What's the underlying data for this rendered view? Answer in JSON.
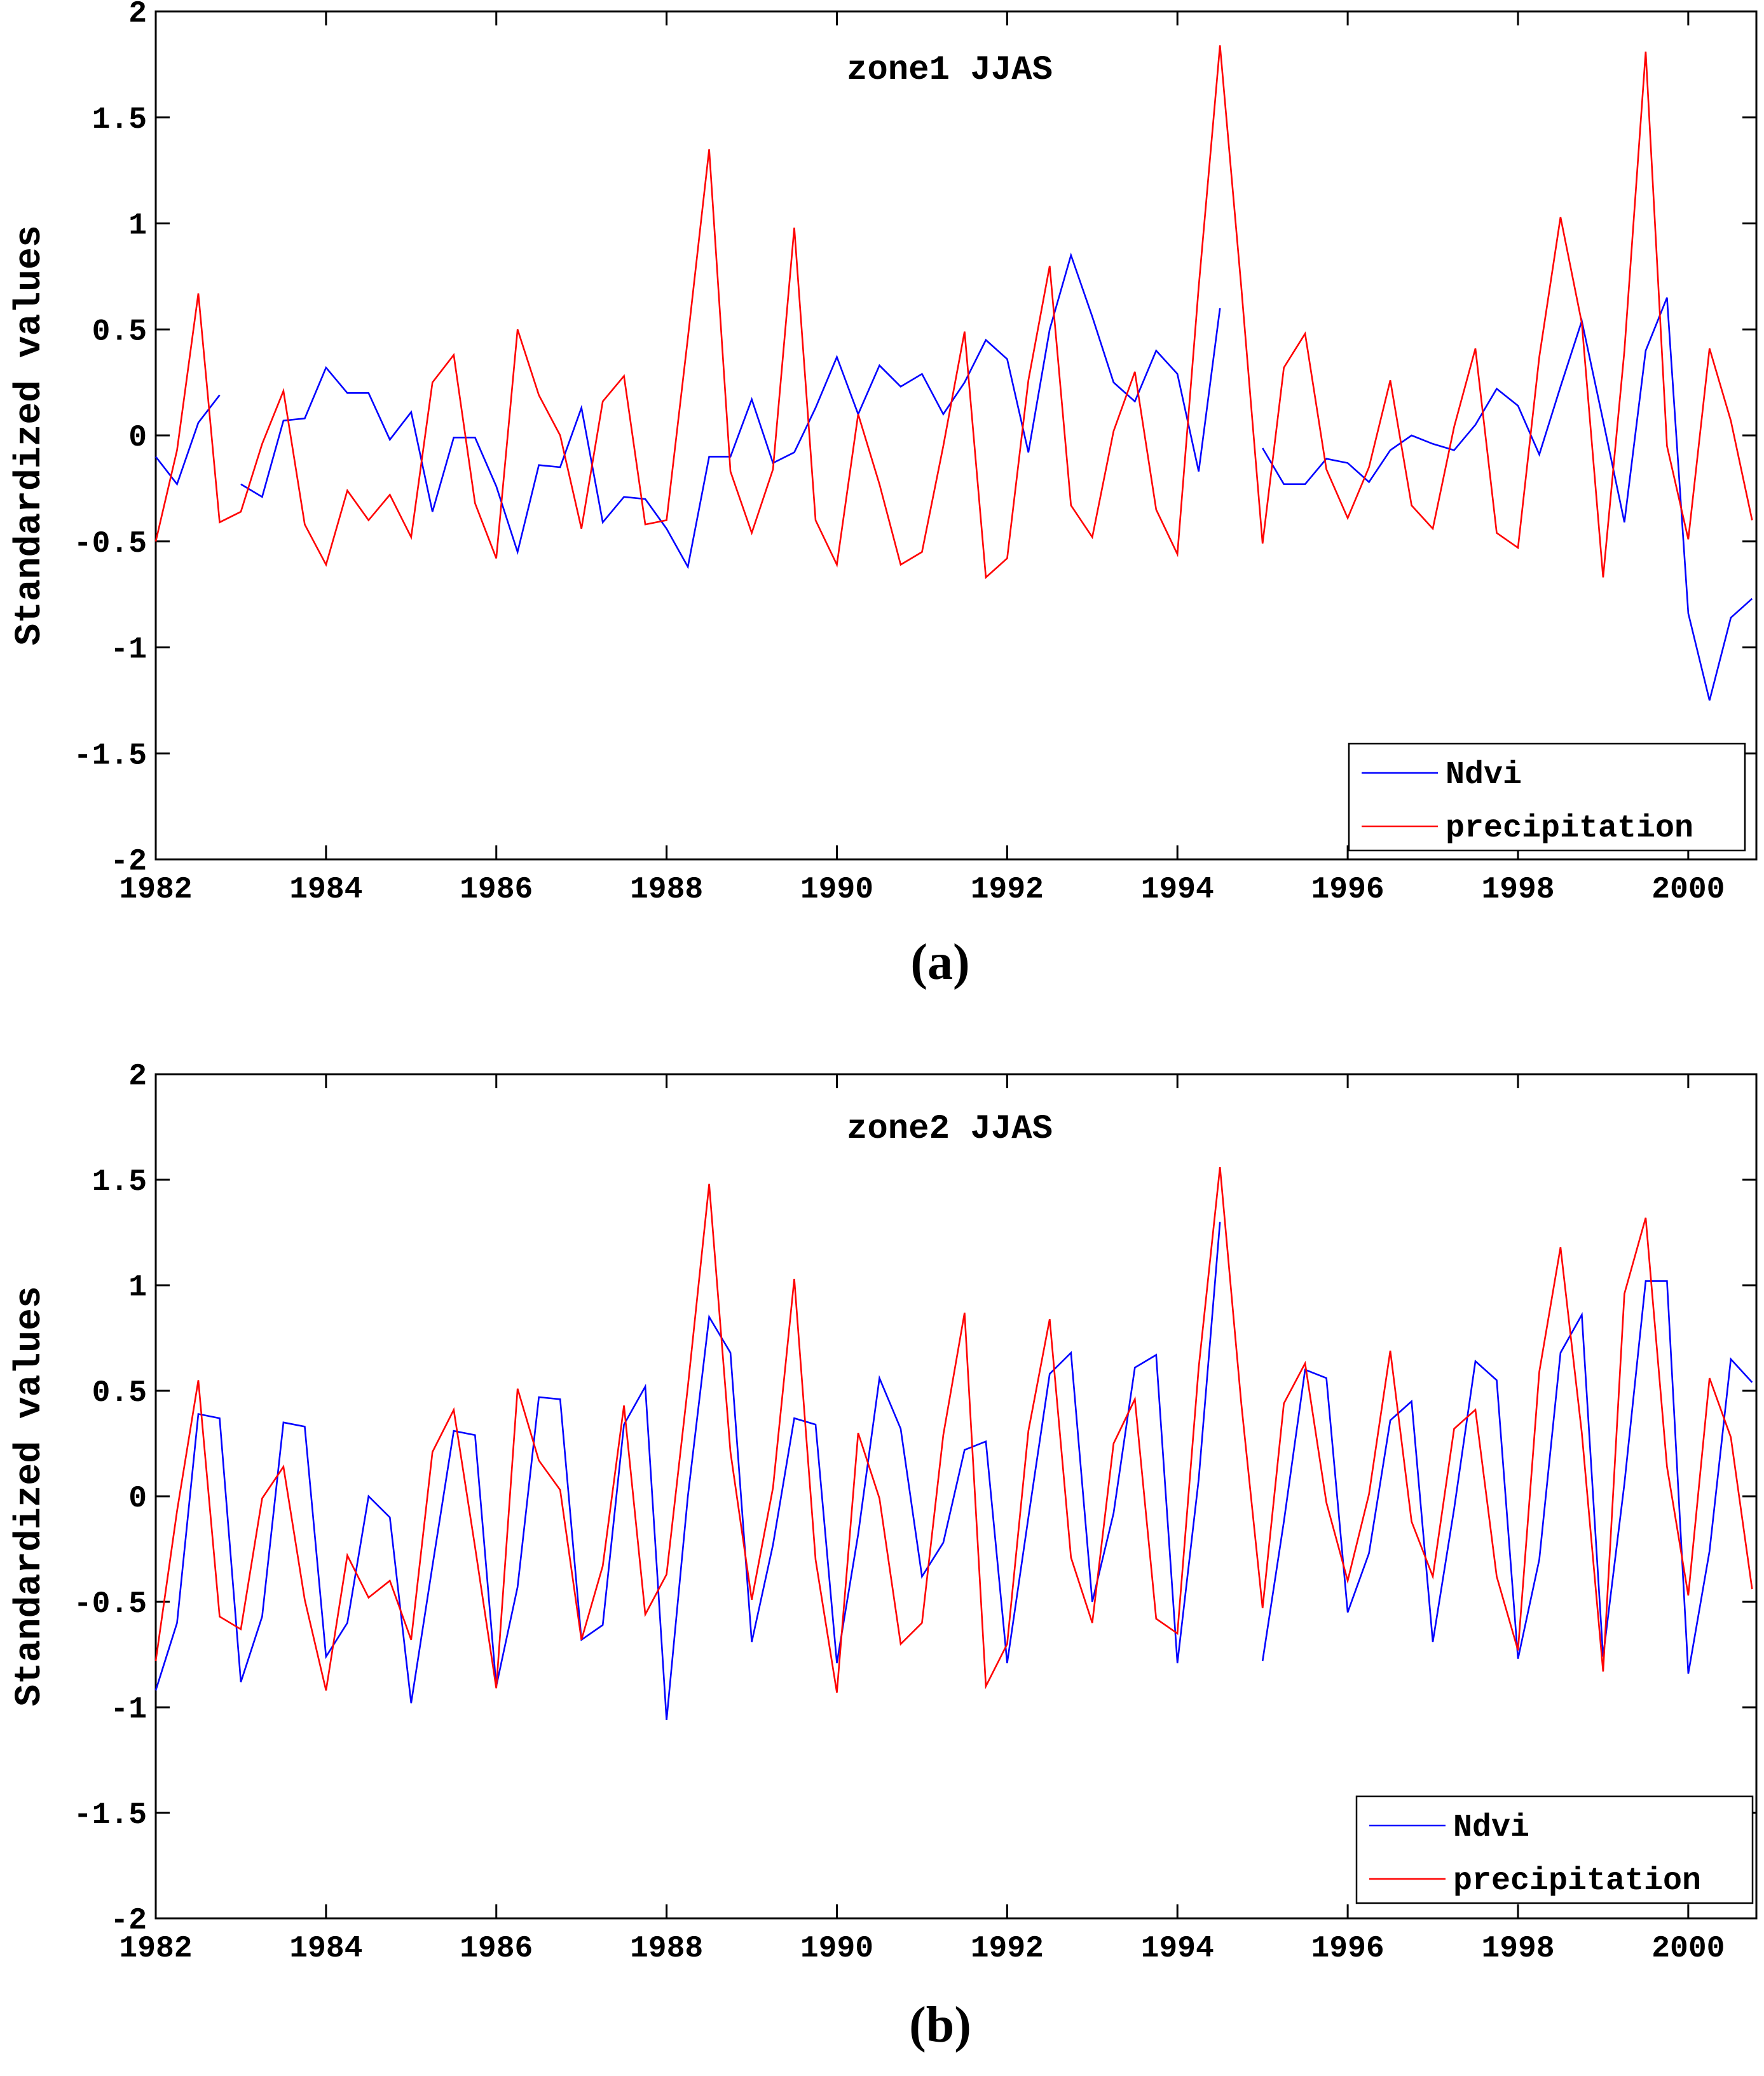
{
  "chart_data": [
    {
      "type": "line",
      "panel_label": "(a)",
      "title": "zone1 JJAS",
      "xlabel": "",
      "ylabel": "Standardized values",
      "xlim": [
        1982,
        2000.8
      ],
      "ylim": [
        -2,
        2
      ],
      "xticks": [
        1982,
        1984,
        1986,
        1988,
        1990,
        1992,
        1994,
        1996,
        1998,
        2000
      ],
      "yticks": [
        -2,
        -1.5,
        -1,
        -0.5,
        0,
        0.5,
        1,
        1.5,
        2
      ],
      "ytick_labels": [
        "-2",
        "-1.5",
        "-1",
        "-0.5",
        "0",
        "0.5",
        "1",
        "1.5",
        "2"
      ],
      "legend_position": "bottom-right",
      "series": [
        {
          "name": "Ndvi",
          "color": "#0000ff",
          "x": [
            1982,
            1982.25,
            1982.5,
            1982.75,
            null,
            1983,
            1983.25,
            1983.5,
            1983.75,
            1984,
            1984.25,
            1984.5,
            1984.75,
            1985,
            1985.25,
            1985.5,
            1985.75,
            1986,
            1986.25,
            1986.5,
            1986.75,
            1987,
            1987.25,
            1987.5,
            1987.75,
            1988,
            1988.25,
            1988.5,
            1988.75,
            1989,
            1989.25,
            1989.5,
            1989.75,
            1990,
            1990.25,
            1990.5,
            1990.75,
            1991,
            1991.25,
            1991.5,
            1991.75,
            1992,
            1992.25,
            1992.5,
            1992.75,
            1993,
            1993.25,
            1993.5,
            1993.75,
            1994,
            1994.25,
            1994.5,
            null,
            1995,
            1995.25,
            1995.5,
            1995.75,
            1996,
            1996.25,
            1996.5,
            1996.75,
            1997,
            1997.25,
            1997.5,
            1997.75,
            1998,
            1998.25,
            1998.5,
            1998.75,
            1999,
            1999.25,
            1999.5,
            1999.75,
            2000,
            2000.25,
            2000.5,
            2000.75
          ],
          "y": [
            -0.1,
            -0.23,
            0.06,
            0.19,
            null,
            -0.23,
            -0.29,
            0.07,
            0.08,
            0.32,
            0.2,
            0.2,
            -0.02,
            0.11,
            -0.36,
            -0.01,
            -0.01,
            -0.24,
            -0.55,
            -0.14,
            -0.15,
            0.13,
            -0.41,
            -0.29,
            -0.3,
            -0.44,
            -0.62,
            -0.1,
            -0.1,
            0.17,
            -0.13,
            -0.08,
            0.13,
            0.37,
            0.1,
            0.33,
            0.23,
            0.29,
            0.1,
            0.25,
            0.45,
            0.36,
            -0.08,
            0.5,
            0.85,
            0.56,
            0.25,
            0.16,
            0.4,
            0.29,
            -0.17,
            0.6,
            null,
            -0.06,
            -0.23,
            -0.23,
            -0.11,
            -0.13,
            -0.22,
            -0.07,
            0.0,
            -0.04,
            -0.07,
            0.05,
            0.22,
            0.14,
            -0.09,
            0.23,
            0.54,
            0.07,
            -0.41,
            0.4,
            0.65,
            -0.84,
            -1.25,
            -0.86,
            -0.77
          ]
        },
        {
          "name": "precipitation",
          "color": "#ff0000",
          "x": [
            1982,
            1982.25,
            1982.5,
            1982.75,
            1983,
            1983.25,
            1983.5,
            1983.75,
            1984,
            1984.25,
            1984.5,
            1984.75,
            1985,
            1985.25,
            1985.5,
            1985.75,
            1986,
            1986.25,
            1986.5,
            1986.75,
            1987,
            1987.25,
            1987.5,
            1987.75,
            1988,
            1988.25,
            1988.5,
            1988.75,
            1989,
            1989.25,
            1989.5,
            1989.75,
            1990,
            1990.25,
            1990.5,
            1990.75,
            1991,
            1991.25,
            1991.5,
            1991.75,
            1992,
            1992.25,
            1992.5,
            1992.75,
            1993,
            1993.25,
            1993.5,
            1993.75,
            1994,
            1994.25,
            1994.5,
            1994.75,
            1995,
            1995.25,
            1995.5,
            1995.75,
            1996,
            1996.25,
            1996.5,
            1996.75,
            1997,
            1997.25,
            1997.5,
            1997.75,
            1998,
            1998.25,
            1998.5,
            1998.75,
            1999,
            1999.25,
            1999.5,
            1999.75,
            2000,
            2000.25,
            2000.5,
            2000.75
          ],
          "y": [
            -0.5,
            -0.07,
            0.67,
            -0.41,
            -0.36,
            -0.04,
            0.21,
            -0.42,
            -0.61,
            -0.26,
            -0.4,
            -0.28,
            -0.48,
            0.25,
            0.38,
            -0.32,
            -0.58,
            0.5,
            0.19,
            0.0,
            -0.44,
            0.16,
            0.28,
            -0.42,
            -0.4,
            0.46,
            1.35,
            -0.17,
            -0.46,
            -0.16,
            0.98,
            -0.4,
            -0.61,
            0.1,
            -0.23,
            -0.61,
            -0.55,
            -0.05,
            0.49,
            -0.67,
            -0.58,
            0.26,
            0.8,
            -0.33,
            -0.48,
            0.02,
            0.3,
            -0.35,
            -0.56,
            0.7,
            1.84,
            0.7,
            -0.51,
            0.32,
            0.48,
            -0.16,
            -0.39,
            -0.15,
            0.26,
            -0.33,
            -0.44,
            0.04,
            0.41,
            -0.46,
            -0.53,
            0.37,
            1.03,
            0.53,
            -0.67,
            0.4,
            1.81,
            -0.05,
            -0.49,
            0.41,
            0.07,
            -0.4
          ]
        }
      ]
    },
    {
      "type": "line",
      "panel_label": "(b)",
      "title": "zone2 JJAS",
      "xlabel": "",
      "ylabel": "Standardized values",
      "xlim": [
        1982,
        2000.8
      ],
      "ylim": [
        -2,
        2
      ],
      "xticks": [
        1982,
        1984,
        1986,
        1988,
        1990,
        1992,
        1994,
        1996,
        1998,
        2000
      ],
      "yticks": [
        -2,
        -1.5,
        -1,
        -0.5,
        0,
        0.5,
        1,
        1.5,
        2
      ],
      "ytick_labels": [
        "-2",
        "-1.5",
        "-1",
        "-0.5",
        "0",
        "0.5",
        "1",
        "1.5",
        "2"
      ],
      "legend_position": "bottom-right",
      "series": [
        {
          "name": "Ndvi",
          "color": "#0000ff",
          "x": [
            1982,
            1982.25,
            1982.5,
            1982.75,
            1983,
            1983.25,
            1983.5,
            1983.75,
            1984,
            1984.25,
            1984.5,
            1984.75,
            1985,
            1985.25,
            1985.5,
            1985.75,
            1986,
            1986.25,
            1986.5,
            1986.75,
            1987,
            1987.25,
            1987.5,
            1987.75,
            1988,
            1988.25,
            1988.5,
            1988.75,
            1989,
            1989.25,
            1989.5,
            1989.75,
            1990,
            1990.25,
            1990.5,
            1990.75,
            1991,
            1991.25,
            1991.5,
            1991.75,
            1992,
            1992.25,
            1992.5,
            1992.75,
            1993,
            1993.25,
            1993.5,
            1993.75,
            1994,
            1994.25,
            1994.5,
            null,
            1995,
            1995.25,
            1995.5,
            1995.75,
            1996,
            1996.25,
            1996.5,
            1996.75,
            1997,
            1997.25,
            1997.5,
            1997.75,
            1998,
            1998.25,
            1998.5,
            1998.75,
            1999,
            1999.25,
            1999.5,
            1999.75,
            2000,
            2000.25,
            2000.5,
            2000.75
          ],
          "y": [
            -0.92,
            -0.6,
            0.39,
            0.37,
            -0.88,
            -0.57,
            0.35,
            0.33,
            -0.76,
            -0.6,
            0.0,
            -0.1,
            -0.98,
            -0.33,
            0.31,
            0.29,
            -0.9,
            -0.43,
            0.47,
            0.46,
            -0.68,
            -0.61,
            0.34,
            0.52,
            -1.06,
            0.0,
            0.85,
            0.68,
            -0.69,
            -0.23,
            0.37,
            0.34,
            -0.79,
            -0.18,
            0.56,
            0.32,
            -0.38,
            -0.22,
            0.22,
            0.26,
            -0.79,
            -0.1,
            0.58,
            0.68,
            -0.5,
            -0.08,
            0.61,
            0.67,
            -0.79,
            0.08,
            1.3,
            null,
            -0.78,
            -0.12,
            0.6,
            0.56,
            -0.55,
            -0.27,
            0.36,
            0.45,
            -0.69,
            -0.06,
            0.64,
            0.55,
            -0.77,
            -0.3,
            0.68,
            0.86,
            -0.76,
            0.06,
            1.02,
            1.02,
            -0.84,
            -0.26,
            0.65,
            0.54
          ]
        },
        {
          "name": "precipitation",
          "color": "#ff0000",
          "x": [
            1982,
            1982.25,
            1982.5,
            1982.75,
            1983,
            1983.25,
            1983.5,
            1983.75,
            1984,
            1984.25,
            1984.5,
            1984.75,
            1985,
            1985.25,
            1985.5,
            1985.75,
            1986,
            1986.25,
            1986.5,
            1986.75,
            1987,
            1987.25,
            1987.5,
            1987.75,
            1988,
            1988.25,
            1988.5,
            1988.75,
            1989,
            1989.25,
            1989.5,
            1989.75,
            1990,
            1990.25,
            1990.5,
            1990.75,
            1991,
            1991.25,
            1991.5,
            1991.75,
            1992,
            1992.25,
            1992.5,
            1992.75,
            1993,
            1993.25,
            1993.5,
            1993.75,
            1994,
            1994.25,
            1994.5,
            1994.75,
            1995,
            1995.25,
            1995.5,
            1995.75,
            1996,
            1996.25,
            1996.5,
            1996.75,
            1997,
            1997.25,
            1997.5,
            1997.75,
            1998,
            1998.25,
            1998.5,
            1998.75,
            1999,
            1999.25,
            1999.5,
            1999.75,
            2000,
            2000.25,
            2000.5,
            2000.75
          ],
          "y": [
            -0.78,
            -0.07,
            0.55,
            -0.57,
            -0.63,
            -0.01,
            0.14,
            -0.49,
            -0.92,
            -0.28,
            -0.48,
            -0.4,
            -0.68,
            0.21,
            0.41,
            -0.24,
            -0.91,
            0.51,
            0.17,
            0.03,
            -0.68,
            -0.33,
            0.43,
            -0.56,
            -0.37,
            0.52,
            1.48,
            0.21,
            -0.49,
            0.04,
            1.03,
            -0.3,
            -0.93,
            0.3,
            -0.01,
            -0.7,
            -0.6,
            0.29,
            0.87,
            -0.9,
            -0.7,
            0.31,
            0.84,
            -0.29,
            -0.6,
            0.25,
            0.46,
            -0.58,
            -0.65,
            0.61,
            1.56,
            0.44,
            -0.53,
            0.44,
            0.63,
            -0.03,
            -0.4,
            0.01,
            0.69,
            -0.12,
            -0.38,
            0.32,
            0.41,
            -0.38,
            -0.73,
            0.59,
            1.18,
            0.3,
            -0.83,
            0.96,
            1.32,
            0.14,
            -0.47,
            0.56,
            0.28,
            -0.44
          ]
        }
      ]
    }
  ]
}
